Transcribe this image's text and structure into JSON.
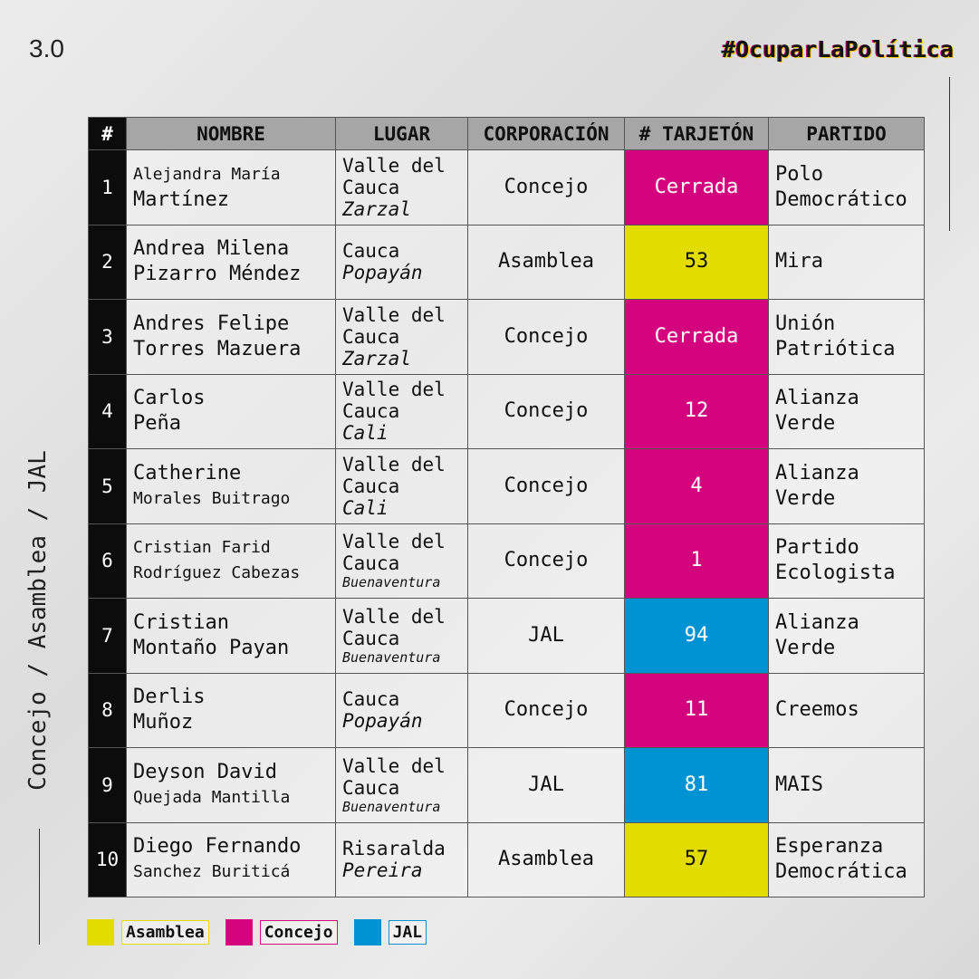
{
  "header": {
    "number": "3.0",
    "hashtag": "#OcuparLaPolítica",
    "side_label": "Concejo / Asamblea / JAL"
  },
  "table": {
    "columns": [
      "#",
      "NOMBRE",
      "LUGAR",
      "CORPORACIÓN",
      "# TARJETÓN",
      "PARTIDO"
    ],
    "rows": [
      {
        "num": "1",
        "name": [
          "Alejandra María",
          "Martínez"
        ],
        "department": "Valle del Cauca",
        "city": "Zarzal",
        "corporacion": "Concejo",
        "tarjeton": "Cerrada",
        "partido": "Polo Democrático"
      },
      {
        "num": "2",
        "name": [
          "Andrea Milena",
          "Pizarro Méndez"
        ],
        "department": "Cauca",
        "city": "Popayán",
        "corporacion": "Asamblea",
        "tarjeton": "53",
        "partido": "Mira"
      },
      {
        "num": "3",
        "name": [
          "Andres Felipe",
          "Torres Mazuera"
        ],
        "department": "Valle del Cauca",
        "city": "Zarzal",
        "corporacion": "Concejo",
        "tarjeton": "Cerrada",
        "partido": "Unión Patriótica"
      },
      {
        "num": "4",
        "name": [
          "Carlos",
          "Peña"
        ],
        "department": "Valle del Cauca",
        "city": "Cali",
        "corporacion": "Concejo",
        "tarjeton": "12",
        "partido": "Alianza Verde"
      },
      {
        "num": "5",
        "name": [
          "Catherine",
          "Morales Buitrago"
        ],
        "department": "Valle del Cauca",
        "city": "Cali",
        "corporacion": "Concejo",
        "tarjeton": "4",
        "partido": "Alianza Verde"
      },
      {
        "num": "6",
        "name": [
          "Cristian Farid",
          "Rodríguez Cabezas"
        ],
        "department": "Valle del Cauca",
        "city": "Buenaventura",
        "corporacion": "Concejo",
        "tarjeton": "1",
        "partido": "Partido Ecologista"
      },
      {
        "num": "7",
        "name": [
          "Cristian",
          "Montaño Payan"
        ],
        "department": "Valle del Cauca",
        "city": "Buenaventura",
        "corporacion": "JAL",
        "tarjeton": "94",
        "partido": "Alianza Verde"
      },
      {
        "num": "8",
        "name": [
          "Derlis",
          "Muñoz"
        ],
        "department": "Cauca",
        "city": "Popayán",
        "corporacion": "Concejo",
        "tarjeton": "11",
        "partido": "Creemos"
      },
      {
        "num": "9",
        "name": [
          "Deyson David",
          "Quejada Mantilla"
        ],
        "department": "Valle del Cauca",
        "city": "Buenaventura",
        "corporacion": "JAL",
        "tarjeton": "81",
        "partido": "MAIS"
      },
      {
        "num": "10",
        "name": [
          "Diego Fernando",
          "Sanchez Buriticá"
        ],
        "department": "Risaralda",
        "city": "Pereira",
        "corporacion": "Asamblea",
        "tarjeton": "57",
        "partido": "Esperanza Democrática"
      }
    ]
  },
  "legend": [
    {
      "label": "Asamblea",
      "color": "#e2dc00",
      "text_color": "#111111"
    },
    {
      "label": "Concejo",
      "color": "#d4047e",
      "text_color": "#ffffff"
    },
    {
      "label": "JAL",
      "color": "#0093d3",
      "text_color": "#ffffff"
    }
  ]
}
